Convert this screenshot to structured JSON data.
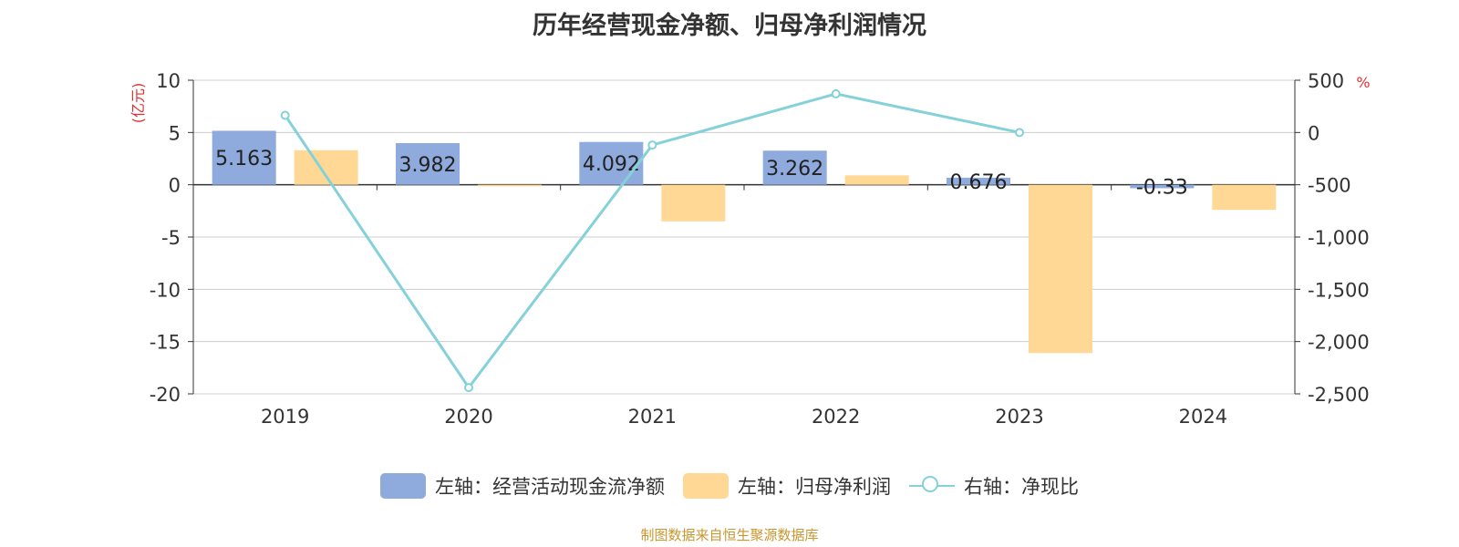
{
  "title": "历年经营现金净额、归母净利润情况",
  "source": "制图数据来自恒生聚源数据库",
  "colors": {
    "cash": "#8faadc",
    "profit": "#ffd895",
    "ratio": "#85d1d9",
    "axis_unit": "#e03030",
    "grid": "#cccccc",
    "text": "#333333"
  },
  "legend": {
    "cash": "左轴：经营活动现金流净额",
    "profit": "左轴：归母净利润",
    "ratio": "右轴：净现比"
  },
  "chart_data": {
    "type": "bar",
    "categories": [
      "2019",
      "2020",
      "2021",
      "2022",
      "2023",
      "2024"
    ],
    "series": [
      {
        "name": "左轴：经营活动现金流净额",
        "axis": "left",
        "type": "bar",
        "values": [
          5.163,
          3.982,
          4.092,
          3.262,
          0.676,
          -0.33
        ],
        "labels": [
          "5.163",
          "3.982",
          "4.092",
          "3.262",
          "0.676",
          "-0.33"
        ]
      },
      {
        "name": "左轴：归母净利润",
        "axis": "left",
        "type": "bar",
        "values": [
          3.3,
          -0.15,
          -3.5,
          0.9,
          -16.1,
          -2.4
        ]
      },
      {
        "name": "右轴：净现比",
        "axis": "right",
        "type": "line",
        "values": [
          164,
          -2440,
          -120,
          370,
          0,
          null
        ]
      }
    ],
    "left_axis": {
      "unit": "(亿元)",
      "ylim": [
        -20,
        10
      ],
      "ticks": [
        10,
        5,
        0,
        -5,
        -10,
        -15,
        -20
      ],
      "tick_labels": [
        "10",
        "5",
        "0",
        "-5",
        "-10",
        "-15",
        "-20"
      ]
    },
    "right_axis": {
      "unit": "%",
      "ylim": [
        -2500,
        500
      ],
      "ticks": [
        500,
        0,
        -500,
        -1000,
        -1500,
        -2000,
        -2500
      ],
      "tick_labels": [
        "500",
        "0",
        "-500",
        "-1,000",
        "-1,500",
        "-2,000",
        "-2,500"
      ]
    },
    "grid": true,
    "legend_position": "bottom"
  }
}
